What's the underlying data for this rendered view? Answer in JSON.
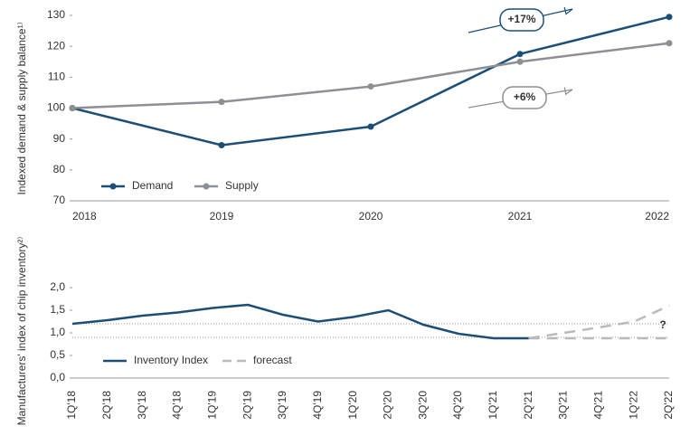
{
  "chart_data": [
    {
      "type": "line",
      "y_label": "Indexed demand & supply balance¹⁾",
      "categories": [
        "2018",
        "2019",
        "2020",
        "2021",
        "2022"
      ],
      "series": [
        {
          "name": "Demand",
          "color": "#1d4f76",
          "values": [
            100,
            88,
            94,
            117.5,
            129.5
          ]
        },
        {
          "name": "Supply",
          "color": "#8c8f93",
          "values": [
            100,
            102,
            107,
            115,
            121
          ]
        }
      ],
      "ylim": [
        70,
        130
      ],
      "yticks": [
        70,
        80,
        90,
        100,
        110,
        120,
        130
      ],
      "annotations": [
        "+17%",
        "+6%"
      ]
    },
    {
      "type": "line",
      "y_label": "Manufacturers' index of chip inventory²⁾",
      "categories": [
        "1Q'18",
        "2Q'18",
        "3Q'18",
        "4Q'18",
        "1Q'19",
        "2Q'19",
        "3Q'19",
        "4Q'19",
        "1Q'20",
        "2Q'20",
        "3Q'20",
        "4Q'20",
        "1Q'21",
        "2Q'21",
        "3Q'21",
        "4Q'21",
        "1Q'22",
        "2Q'22"
      ],
      "series": [
        {
          "name": "Inventory Index",
          "color": "#1d4f76",
          "values": [
            1.2,
            1.28,
            1.38,
            1.45,
            1.55,
            1.62,
            1.4,
            1.25,
            1.35,
            1.5,
            1.18,
            0.98,
            0.88,
            0.88,
            null,
            null,
            null,
            null
          ]
        },
        {
          "name": "forecast",
          "color": "#b8bcc0",
          "style": "dashed",
          "values": [
            null,
            null,
            null,
            null,
            null,
            null,
            null,
            null,
            null,
            null,
            null,
            null,
            null,
            0.88,
            1.0,
            1.12,
            1.25,
            1.6
          ]
        },
        {
          "color": "#b8bcc0",
          "style": "dashed",
          "values": [
            null,
            null,
            null,
            null,
            null,
            null,
            null,
            null,
            null,
            null,
            null,
            null,
            null,
            0.88,
            0.88,
            0.88,
            0.88,
            0.88
          ]
        }
      ],
      "reference_lines": [
        1.2,
        0.9
      ],
      "ylim": [
        0,
        2.0
      ],
      "yticks": [
        {
          "value": 0,
          "label": "0,0"
        },
        {
          "value": 0.5,
          "label": "0,5"
        },
        {
          "value": 1.0,
          "label": "1,0"
        },
        {
          "value": 1.5,
          "label": "1,5"
        },
        {
          "value": 2.0,
          "label": "2,0"
        }
      ],
      "annotations": [
        "?"
      ]
    }
  ]
}
